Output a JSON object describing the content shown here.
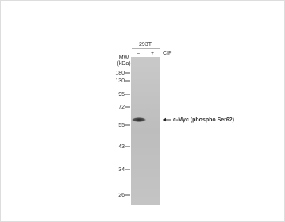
{
  "header": {
    "cell_line": "293T",
    "lanes": [
      "–",
      "+"
    ],
    "treatment": "CIP"
  },
  "mw": {
    "title": "MW",
    "unit": "(kDa)",
    "markers": [
      "180",
      "130",
      "95",
      "72",
      "55",
      "43",
      "34",
      "26"
    ]
  },
  "band": {
    "label": "c-Myc (phospho  Ser62)"
  }
}
